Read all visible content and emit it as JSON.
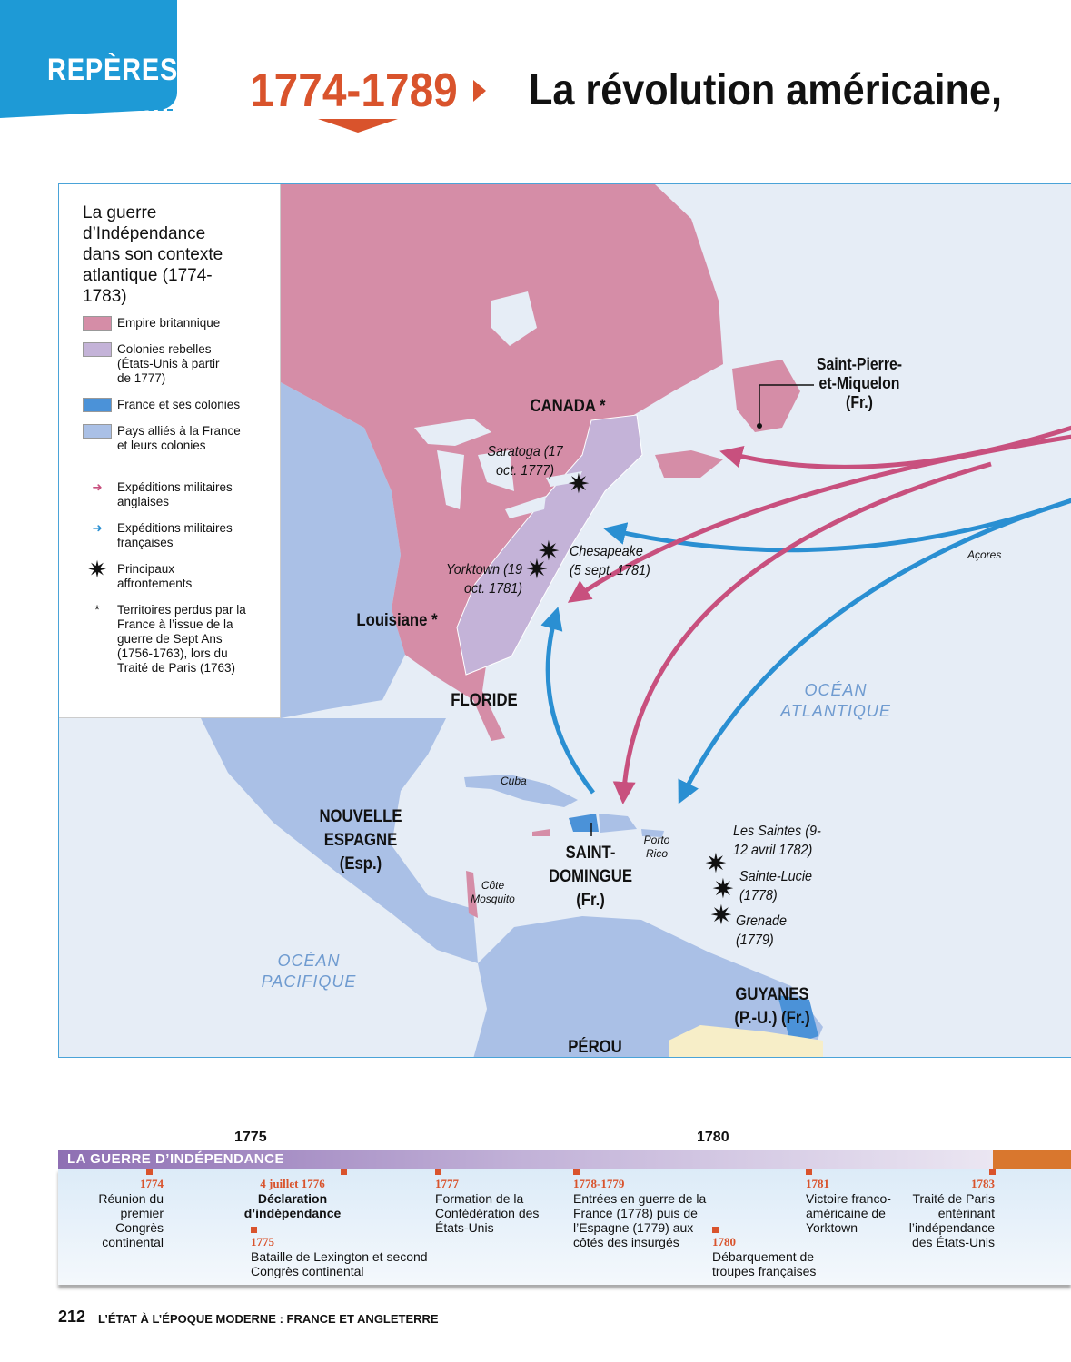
{
  "header": {
    "tab": "REPÈRES",
    "years": "1774-1789",
    "title": "La révolution américaine,"
  },
  "legend": {
    "title": "La guerre d’Indépendance dans son contexte atlantique (1774-1783)",
    "items": [
      {
        "label": "Empire britannique",
        "color": "#d58da7"
      },
      {
        "label": "Colonies rebelles (États-Unis à partir de 1777)",
        "color": "#c4b3d8"
      },
      {
        "label": "France et ses colonies",
        "color": "#4b92d8"
      },
      {
        "label": "Pays alliés à la France et leurs colonies",
        "color": "#aac0e6"
      },
      {
        "label": "Expéditions militaires anglaises",
        "icon": "pink-arrow-icon",
        "color": "#c8507e"
      },
      {
        "label": "Expéditions militaires françaises",
        "icon": "blue-arrow-icon",
        "color": "#2a8fd2"
      },
      {
        "label": "Principaux affrontements",
        "icon": "battle-star-icon"
      },
      {
        "label": "Territoires perdus par la France à l’issue de la guerre de Sept Ans (1756-1763), lors du Traité de Paris (1763)",
        "icon": "asterisk-icon"
      }
    ]
  },
  "map": {
    "regions": [
      "CANADA *",
      "Louisiane *",
      "FLORIDE",
      "NOUVELLE ESPAGNE (Esp.)",
      "SAINT-DOMINGUE (Fr.)",
      "GUYANES (P.-U.) (Fr.)",
      "PÉROU",
      "Saint-Pierre-et-Miquelon (Fr.)"
    ],
    "battles": [
      "Saratoga (17 oct. 1777)",
      "Chesapeake (5 sept. 1781)",
      "Yorktown (19 oct. 1781)",
      "Les Saintes (9-12 avril 1782)",
      "Sainte-Lucie (1778)",
      "Grenade (1779)"
    ],
    "places": [
      "Cuba",
      "Porto Rico",
      "Côte Mosquito",
      "Açores"
    ],
    "oceans": [
      "OCÉAN ATLANTIQUE",
      "OCÉAN PACIFIQUE"
    ]
  },
  "timeline": {
    "label": "LA GUERRE D’INDÉPENDANCE",
    "ticks": [
      "1775",
      "1780"
    ],
    "events": [
      {
        "date": "1774",
        "text": "Réunion du premier Congrès continental"
      },
      {
        "date": "4 juillet 1776",
        "text": "Déclaration d’indépendance"
      },
      {
        "date": "1775",
        "text": "Bataille de Lexington et second Congrès continental"
      },
      {
        "date": "1777",
        "text": "Formation de la Confédération des États-Unis"
      },
      {
        "date": "1778-1779",
        "text": "Entrées en guerre de la France (1778) puis de l’Espagne (1779) aux côtés des insurgés"
      },
      {
        "date": "1780",
        "text": "Débarquement de troupes françaises"
      },
      {
        "date": "1781",
        "text": "Victoire franco-américaine de Yorktown"
      },
      {
        "date": "1783",
        "text": "Traité de Paris entérinant l’indépendance des États-Unis"
      }
    ]
  },
  "footer": {
    "page": "212",
    "running_title": "L’ÉTAT À L’ÉPOQUE MODERNE : FRANCE ET ANGLETERRE"
  }
}
